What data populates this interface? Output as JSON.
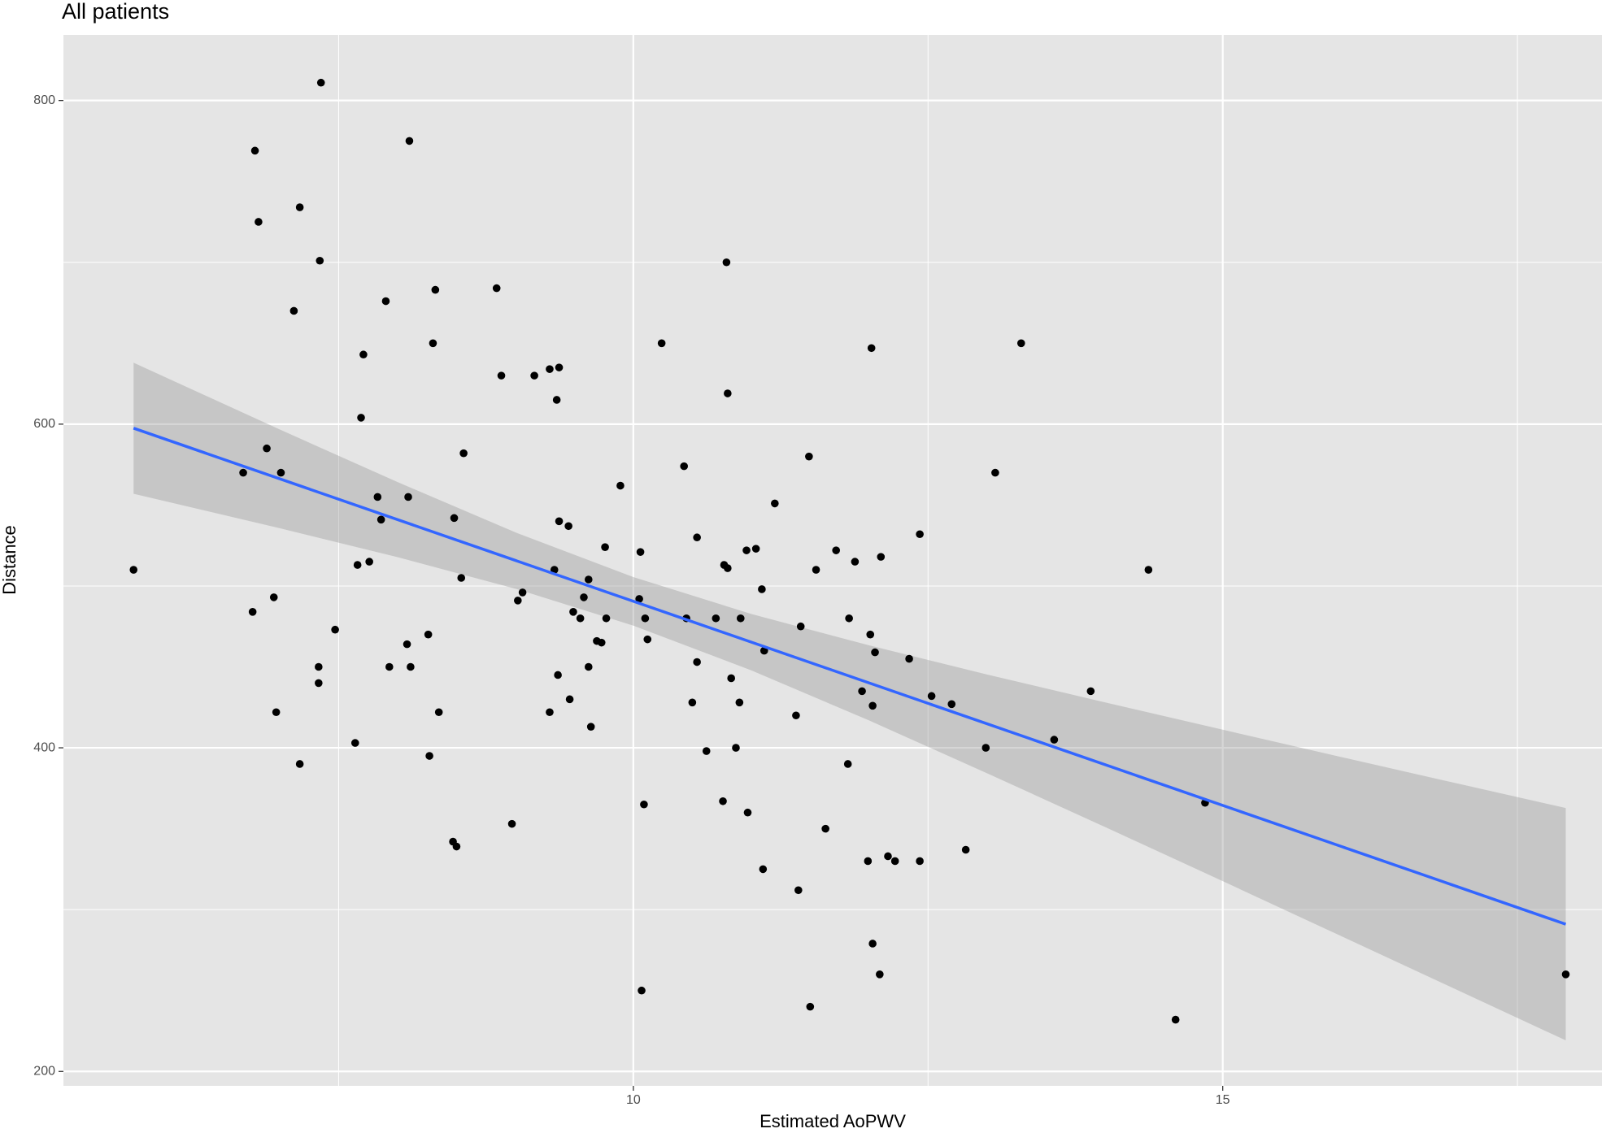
{
  "chart_data": {
    "type": "scatter",
    "title": "All patients",
    "x_label": "Estimated AoPWV",
    "y_label": "Distance",
    "xlim": [
      5.165,
      18.217
    ],
    "ylim": [
      191.1,
      840.5
    ],
    "xticks": [
      10,
      15
    ],
    "yticks": [
      200,
      400,
      600,
      800
    ],
    "x_minor_grid": [
      7.5,
      12.5,
      17.5
    ],
    "y_minor_grid": [
      300,
      500,
      700
    ],
    "grid": true,
    "color": "#000000",
    "x": [
      5.76,
      7.35,
      6.79,
      8.1,
      6.82,
      7.17,
      7.34,
      7.12,
      7.9,
      8.32,
      8.84,
      8.3,
      7.71,
      10.79,
      10.24,
      13.29,
      12.02,
      8.88,
      9.16,
      9.29,
      9.37,
      9.35,
      10.8,
      7.69,
      6.89,
      6.69,
      7.01,
      8.56,
      11.49,
      10.43,
      13.07,
      9.89,
      7.83,
      8.09,
      11.2,
      7.86,
      8.48,
      9.37,
      9.45,
      9.76,
      10.54,
      11.04,
      10.96,
      11.72,
      12.43,
      12.1,
      11.88,
      7.76,
      7.66,
      9.33,
      10.77,
      10.8,
      11.55,
      14.37,
      8.54,
      9.62,
      10.06,
      6.95,
      6.77,
      9.06,
      9.02,
      9.58,
      10.05,
      11.09,
      9.49,
      9.55,
      9.77,
      10.1,
      10.45,
      10.7,
      10.91,
      11.83,
      11.42,
      7.47,
      8.26,
      9.69,
      9.73,
      10.12,
      8.08,
      12.01,
      11.11,
      12.05,
      12.34,
      7.33,
      7.93,
      8.11,
      9.62,
      10.54,
      9.36,
      10.83,
      7.33,
      13.88,
      11.94,
      9.46,
      10.5,
      10.9,
      12.53,
      12.7,
      12.03,
      6.97,
      8.35,
      9.29,
      11.38,
      9.64,
      13.57,
      7.64,
      10.87,
      10.62,
      12.99,
      8.27,
      7.17,
      11.82,
      10.76,
      10.09,
      14.85,
      10.97,
      8.97,
      11.63,
      8.47,
      8.5,
      12.82,
      12.16,
      12.22,
      11.99,
      12.43,
      11.1,
      11.4,
      12.03,
      12.09,
      17.91,
      10.07,
      11.5,
      14.6
    ],
    "values": [
      510,
      811,
      769,
      775,
      725,
      734,
      701,
      670,
      676,
      683,
      684,
      650,
      643,
      700,
      650,
      650,
      647,
      630,
      630,
      634,
      635,
      615,
      619,
      604,
      585,
      570,
      570,
      582,
      580,
      574,
      570,
      562,
      555,
      555,
      551,
      541,
      542,
      540,
      537,
      524,
      530,
      523,
      522,
      522,
      532,
      518,
      515,
      515,
      513,
      510,
      513,
      511,
      510,
      510,
      505,
      504,
      521,
      493,
      484,
      496,
      491,
      493,
      492,
      498,
      484,
      480,
      480,
      480,
      480,
      480,
      480,
      480,
      475,
      473,
      470,
      466,
      465,
      467,
      464,
      470,
      460,
      459,
      455,
      450,
      450,
      450,
      450,
      453,
      445,
      443,
      440,
      435,
      435,
      430,
      428,
      428,
      432,
      427,
      426,
      422,
      422,
      422,
      420,
      413,
      405,
      403,
      400,
      398,
      400,
      395,
      390,
      390,
      367,
      365,
      366,
      360,
      353,
      350,
      342,
      339,
      337,
      333,
      330,
      330,
      330,
      325,
      312,
      279,
      260,
      260,
      250,
      240,
      232
    ],
    "fit": {
      "x": [
        5.76,
        17.91
      ],
      "values": [
        597.5,
        291
      ],
      "color": "#3366FF"
    },
    "band": {
      "x": [
        5.76,
        7,
        8,
        9,
        10,
        11,
        12,
        13,
        14,
        15,
        16,
        17,
        17.91
      ],
      "lower": [
        557,
        535.7,
        517.8,
        498.3,
        475.5,
        447.9,
        416.9,
        384.3,
        351.1,
        317.6,
        283.8,
        250,
        219.2
      ],
      "upper": [
        638,
        596.7,
        564.2,
        533.1,
        505.5,
        482.7,
        463.3,
        445.3,
        428.1,
        411.2,
        394.4,
        377.8,
        362.8
      ],
      "color": "#999999"
    }
  }
}
